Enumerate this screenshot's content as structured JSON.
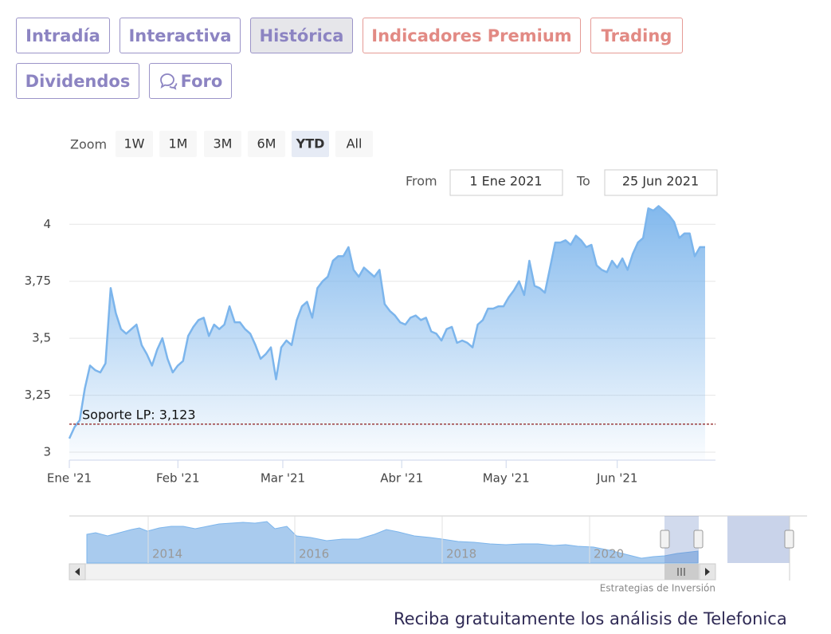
{
  "tabs": [
    "Intradía",
    "Interactiva",
    "Histórica",
    "Indicadores Premium",
    "Trading",
    "Dividendos",
    "Foro"
  ],
  "zoom": {
    "label": "Zoom",
    "buttons": [
      "1W",
      "1M",
      "3M",
      "6M",
      "YTD",
      "All"
    ]
  },
  "range": {
    "from_label": "From",
    "from": "1 Ene 2021",
    "to_label": "To",
    "to": "25 Jun 2021"
  },
  "chart_data": {
    "type": "area",
    "color": "#7cb5ec",
    "values": [
      3.06,
      3.11,
      3.14,
      3.28,
      3.38,
      3.36,
      3.35,
      3.39,
      3.72,
      3.61,
      3.54,
      3.52,
      3.54,
      3.56,
      3.47,
      3.43,
      3.38,
      3.45,
      3.5,
      3.41,
      3.35,
      3.38,
      3.4,
      3.51,
      3.55,
      3.58,
      3.59,
      3.51,
      3.56,
      3.54,
      3.56,
      3.64,
      3.57,
      3.57,
      3.54,
      3.52,
      3.47,
      3.41,
      3.43,
      3.46,
      3.32,
      3.46,
      3.49,
      3.47,
      3.58,
      3.64,
      3.66,
      3.59,
      3.72,
      3.75,
      3.77,
      3.84,
      3.86,
      3.86,
      3.9,
      3.8,
      3.77,
      3.81,
      3.79,
      3.77,
      3.8,
      3.65,
      3.62,
      3.6,
      3.57,
      3.56,
      3.59,
      3.6,
      3.58,
      3.59,
      3.53,
      3.52,
      3.49,
      3.54,
      3.55,
      3.48,
      3.49,
      3.48,
      3.46,
      3.56,
      3.58,
      3.63,
      3.63,
      3.64,
      3.64,
      3.68,
      3.71,
      3.75,
      3.69,
      3.84,
      3.73,
      3.72,
      3.7,
      3.81,
      3.92,
      3.92,
      3.93,
      3.91,
      3.95,
      3.93,
      3.9,
      3.91,
      3.82,
      3.8,
      3.79,
      3.84,
      3.81,
      3.85,
      3.8,
      3.87,
      3.92,
      3.94,
      4.07,
      4.06,
      4.08,
      4.06,
      4.04,
      4.01,
      3.94,
      3.96,
      3.96,
      3.86,
      3.9,
      3.9
    ],
    "xlim": [
      0,
      125
    ],
    "xticks": [
      {
        "value": 0,
        "label": "Ene '21"
      },
      {
        "value": 21,
        "label": "Feb '21"
      },
      {
        "value": 41.3,
        "label": "Mar '21"
      },
      {
        "value": 64.3,
        "label": "Abr '21"
      },
      {
        "value": 84.5,
        "label": "May '21"
      },
      {
        "value": 106,
        "label": "Jun '21"
      }
    ],
    "ylim": [
      2.965,
      4.225
    ],
    "yticks": [
      3,
      {
        "value": 3.25,
        "label": "3,25"
      },
      {
        "value": 3.5,
        "label": "3,5"
      },
      {
        "value": 3.75,
        "label": "3,75"
      },
      4
    ],
    "grid": true,
    "support": {
      "label": "Soporte LP: 3,123",
      "value": 3.123,
      "color": "#8b1a1a"
    }
  },
  "navigator": {
    "years": [
      "2014",
      "2016",
      "2018",
      "2020"
    ]
  },
  "credit": "Estrategias de Inversión",
  "footer": "Reciba gratuitamente los análisis de Telefonica"
}
